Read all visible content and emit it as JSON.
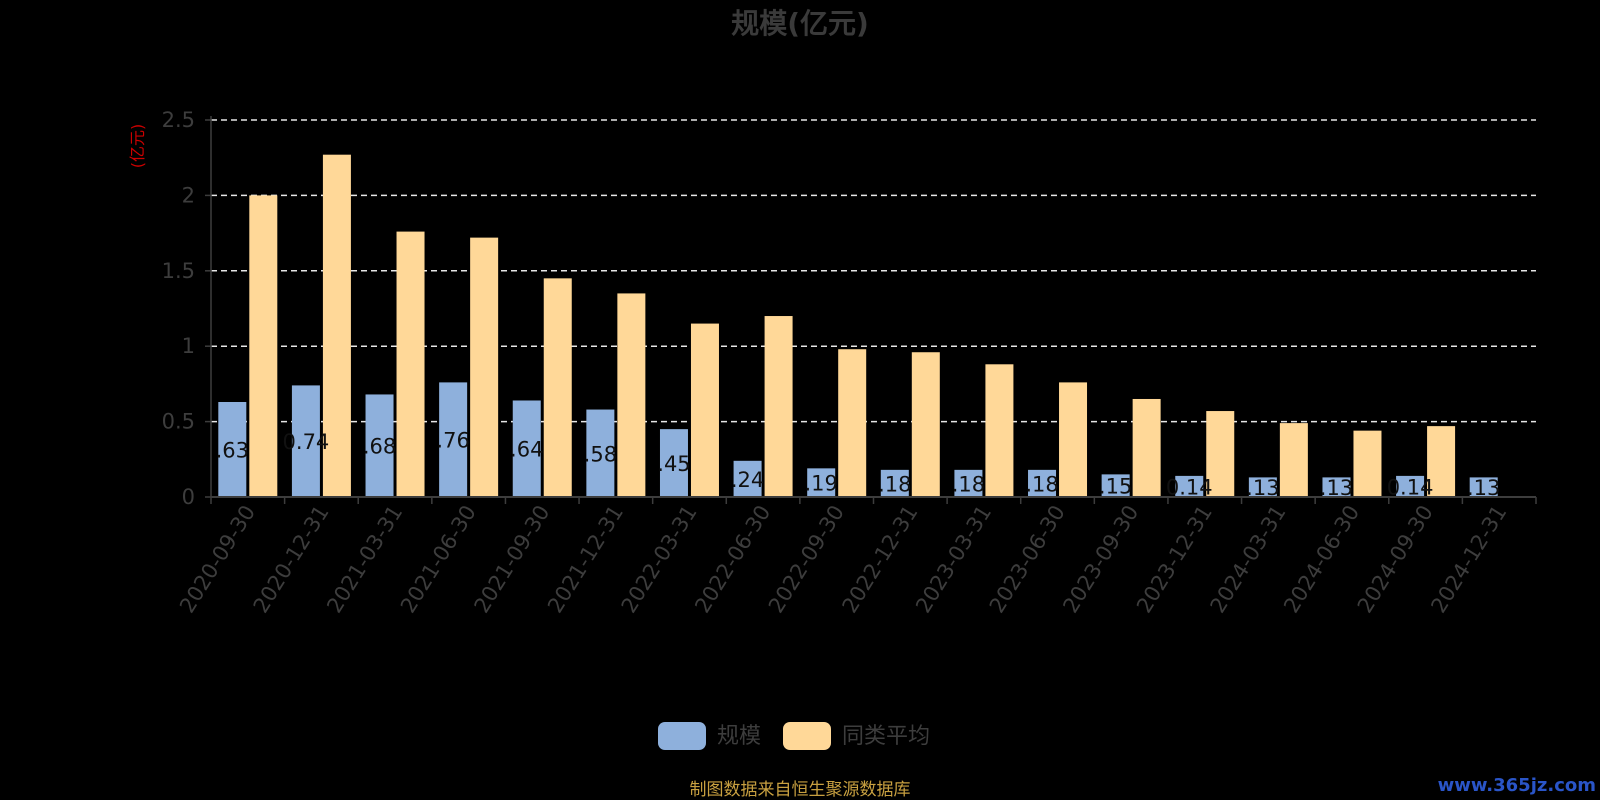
{
  "chart_data": {
    "type": "bar",
    "title": "规模(亿元)",
    "ylabel": "(亿元)",
    "ylim": [
      0,
      2.5
    ],
    "yticks": [
      "0",
      "0.5",
      "1",
      "1.5",
      "2",
      "2.5"
    ],
    "grid": true,
    "legend_position": "bottom-center",
    "categories": [
      "2020-09-30",
      "2020-12-31",
      "2021-03-31",
      "2021-06-30",
      "2021-09-30",
      "2021-12-31",
      "2022-03-31",
      "2022-06-30",
      "2022-09-30",
      "2022-12-31",
      "2023-03-31",
      "2023-06-30",
      "2023-09-30",
      "2023-12-31",
      "2024-03-31",
      "2024-06-30",
      "2024-09-30",
      "2024-12-31"
    ],
    "series": [
      {
        "name": "规模",
        "color": "#8eb0dc",
        "values": [
          0.63,
          0.74,
          0.68,
          0.76,
          0.64,
          0.58,
          0.45,
          0.24,
          0.19,
          0.18,
          0.18,
          0.18,
          0.15,
          0.14,
          0.13,
          0.13,
          0.14,
          0.13
        ],
        "labels": [
          ".63",
          "0.74",
          ".68",
          ".76",
          ".64",
          ".58",
          ".45",
          ".24",
          ".19",
          ".18",
          ".18",
          ".18",
          ".15",
          "0.14",
          ".13",
          ".13",
          "0.14",
          ".13"
        ]
      },
      {
        "name": "同类平均",
        "color": "#ffd898",
        "values": [
          2.0,
          2.27,
          1.76,
          1.72,
          1.45,
          1.35,
          1.15,
          1.2,
          0.98,
          0.96,
          0.88,
          0.76,
          0.65,
          0.57,
          0.49,
          0.44,
          0.47,
          null
        ]
      }
    ],
    "source": "制图数据来自恒生聚源数据库",
    "watermark": "www.365jz.com"
  }
}
